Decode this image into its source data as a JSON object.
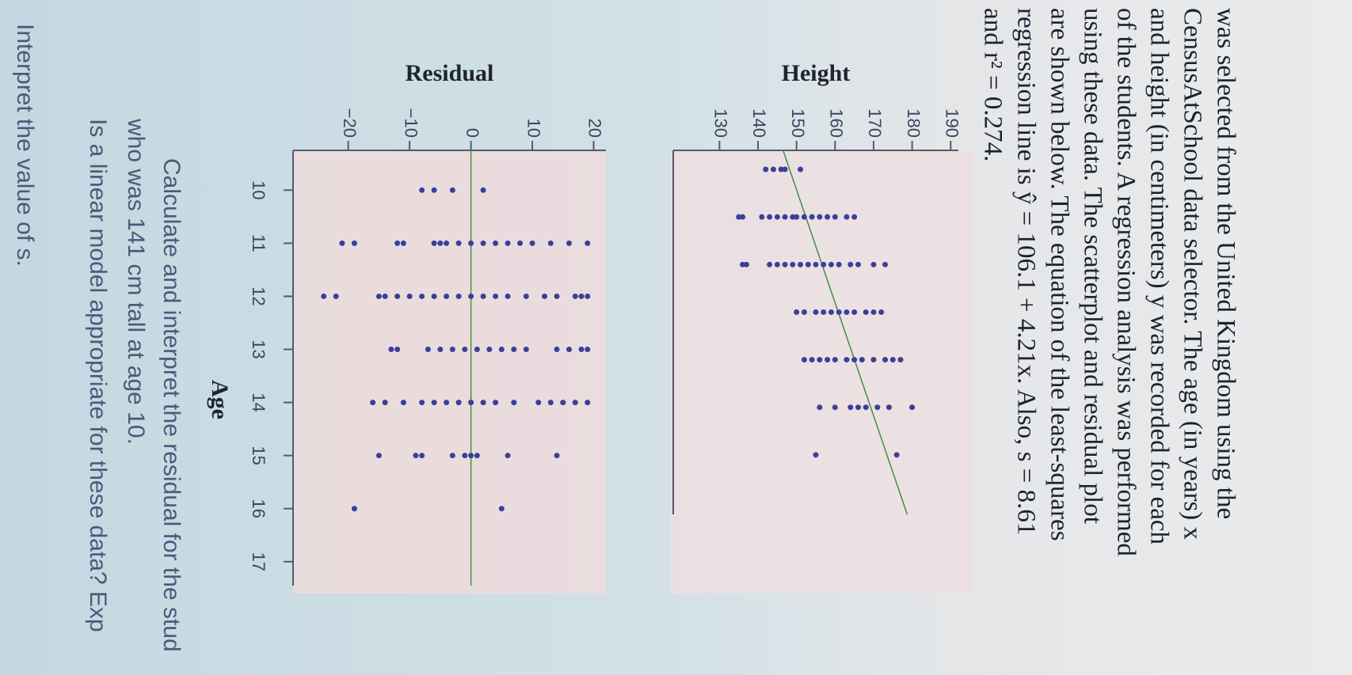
{
  "paragraph": [
    "was selected from the United Kingdom using the",
    "CensusAtSchool data selector. The age (in years) x",
    "and height (in centimeters) y was recorded for each",
    "of the students. A regression analysis was performed",
    "using these data. The scatterplot and residual plot",
    "are shown below. The equation of the least-squares",
    "regression line is ŷ = 106.1 + 4.21x. Also, s = 8.61",
    "and r² = 0.274."
  ],
  "chart_data": [
    {
      "type": "scatter",
      "y_label": "Height",
      "color": "#3b3f98",
      "x": [
        10,
        10,
        10,
        10,
        10,
        11,
        11,
        11,
        11,
        11,
        11,
        11,
        11,
        11,
        11,
        11,
        11,
        11,
        11,
        11,
        12,
        12,
        12,
        12,
        12,
        12,
        12,
        12,
        12,
        12,
        12,
        12,
        12,
        12,
        12,
        12,
        13,
        13,
        13,
        13,
        13,
        13,
        13,
        13,
        13,
        13,
        13,
        14,
        14,
        14,
        14,
        14,
        14,
        14,
        14,
        14,
        14,
        14,
        14,
        15,
        15,
        15,
        15,
        15,
        15,
        15,
        15,
        16,
        16
      ],
      "y": [
        142,
        144,
        146,
        147,
        151,
        135,
        136,
        141,
        143,
        145,
        147,
        149,
        150,
        152,
        154,
        156,
        158,
        160,
        163,
        165,
        136,
        137,
        143,
        145,
        147,
        149,
        151,
        153,
        155,
        157,
        159,
        161,
        164,
        166,
        170,
        173,
        150,
        152,
        155,
        157,
        159,
        161,
        163,
        165,
        168,
        170,
        172,
        152,
        154,
        156,
        158,
        160,
        163,
        165,
        167,
        170,
        173,
        175,
        177,
        156,
        160,
        164,
        166,
        168,
        171,
        174,
        180,
        155,
        176
      ],
      "xlim": [
        9.6,
        17.25
      ],
      "ylim": [
        118,
        192
      ],
      "yticks": [
        130,
        140,
        150,
        160,
        170,
        180,
        190
      ],
      "fit_line": {
        "intercept": 106.1,
        "slope": 4.21,
        "color": "#3f8f45"
      }
    },
    {
      "type": "scatter",
      "x_label": "Age",
      "y_label": "Residual",
      "color": "#3b3f98",
      "x": [
        10,
        10,
        10,
        10,
        11,
        11,
        11,
        11,
        11,
        11,
        11,
        11,
        11,
        11,
        11,
        11,
        11,
        11,
        11,
        11,
        11,
        12,
        12,
        12,
        12,
        12,
        12,
        12,
        12,
        12,
        12,
        12,
        12,
        12,
        12,
        12,
        12,
        12,
        12,
        12,
        12,
        13,
        13,
        13,
        13,
        13,
        13,
        13,
        13,
        13,
        13,
        13,
        13,
        13,
        13,
        13,
        14,
        14,
        14,
        14,
        14,
        14,
        14,
        14,
        14,
        14,
        14,
        14,
        14,
        14,
        14,
        14,
        15,
        15,
        15,
        15,
        15,
        15,
        15,
        15,
        15,
        16,
        16
      ],
      "y": [
        -8,
        -6,
        -3,
        2,
        -21,
        -19,
        -12,
        -11,
        -6,
        -5,
        -4,
        -2,
        0,
        2,
        4,
        6,
        8,
        10,
        13,
        16,
        19,
        -24,
        -22,
        -15,
        -14,
        -12,
        -10,
        -8,
        -6,
        -4,
        -2,
        0,
        2,
        4,
        6,
        9,
        12,
        14,
        17,
        18,
        19,
        -13,
        -12,
        -7,
        -5,
        -3,
        -1,
        1,
        3,
        5,
        7,
        9,
        14,
        16,
        18,
        19,
        -16,
        -14,
        -11,
        -8,
        -6,
        -4,
        -2,
        0,
        2,
        4,
        7,
        11,
        13,
        15,
        17,
        19,
        -15,
        -9,
        -8,
        -3,
        -1,
        0,
        1,
        6,
        14,
        -19,
        5
      ],
      "xlim": [
        9.25,
        17.45
      ],
      "ylim": [
        -29,
        22
      ],
      "xticks": [
        10,
        11,
        12,
        13,
        14,
        15,
        16,
        17
      ],
      "yticks": [
        {
          "value": -20,
          "label": "−20"
        },
        {
          "value": -10,
          "label": "−10"
        },
        0,
        10,
        20
      ],
      "zero_line_color": "#3f8f45"
    }
  ],
  "questions": [
    "Calculate and interpret the residual for the stud",
    "who was 141 cm tall at age 10.",
    "Is a linear model appropriate for these data? Exp",
    "Interpret the value of s."
  ]
}
